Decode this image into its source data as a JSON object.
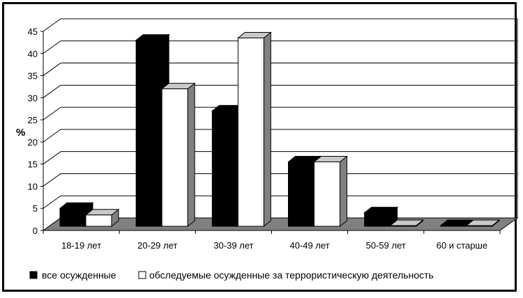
{
  "chart_data": {
    "type": "bar",
    "title": "",
    "xlabel": "",
    "ylabel": "%",
    "ylim": [
      0,
      45
    ],
    "yticks": [
      0,
      5,
      10,
      15,
      20,
      25,
      30,
      35,
      40,
      45
    ],
    "grid": true,
    "legend_position": "bottom",
    "categories": [
      "18-19 лет",
      "20-29 лет",
      "30-39 лет",
      "40-49 лет",
      "50-59 лет",
      "60 и старше"
    ],
    "series": [
      {
        "name": "все осужденные",
        "color": "#000000",
        "values": [
          5,
          43,
          27,
          15.5,
          4,
          0.3
        ]
      },
      {
        "name": "обследуемые осужденные за террористическую деятельность",
        "color": "#ffffff",
        "values": [
          3.5,
          32,
          43.5,
          15.5,
          0.5,
          0.5
        ]
      }
    ]
  }
}
